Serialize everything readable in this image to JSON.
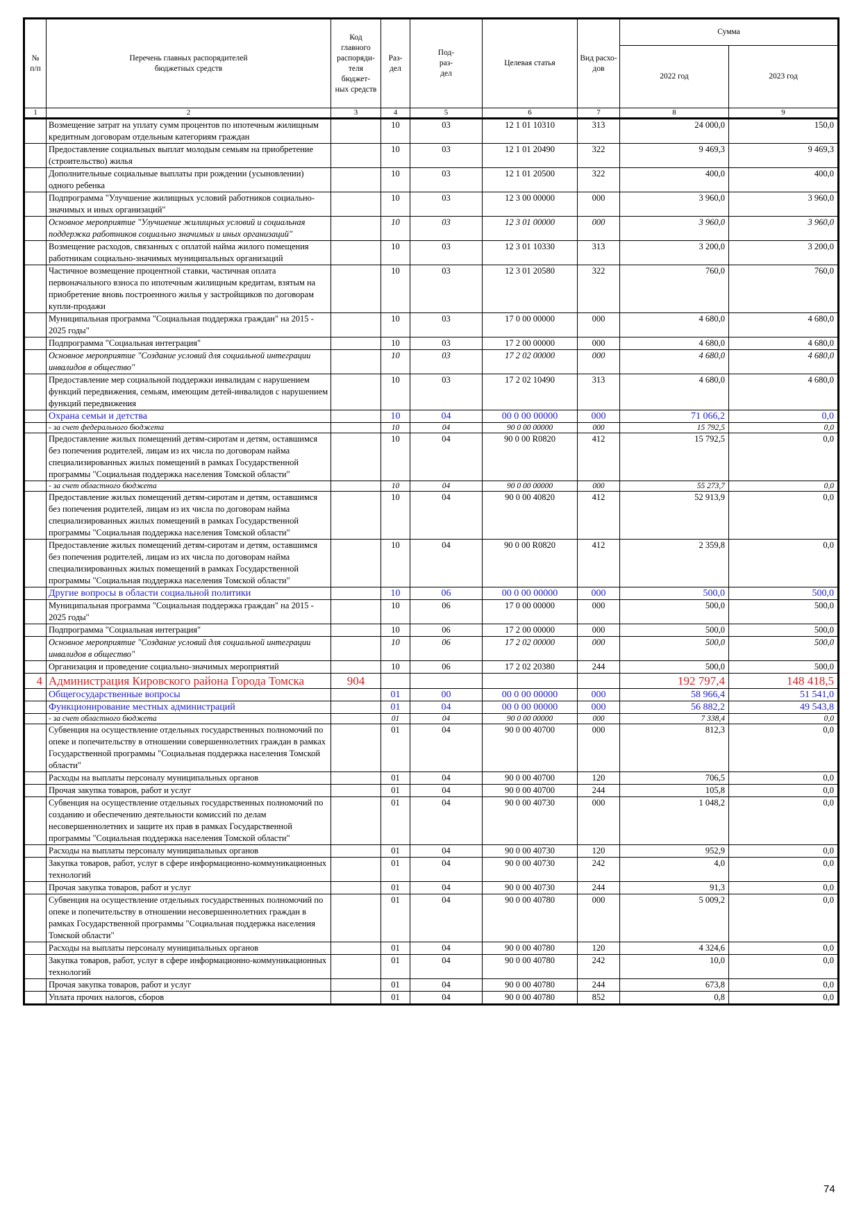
{
  "columns": {
    "num": "№\nп/п",
    "name": "Перечень главных распорядителей\nбюджетных средств",
    "code": "Код\nглавного\nраспоряди-\nтеля бюджет-\nных средств",
    "razdel": "Раз-\nдел",
    "podrazdel": "Под-\nраз-\nдел",
    "target": "Целевая статья",
    "vid": "Вид расхо-\nдов",
    "sum": "Сумма",
    "year1": "2022 год",
    "year2": "2023 год"
  },
  "column_numbers": [
    "1",
    "2",
    "3",
    "4",
    "5",
    "6",
    "7",
    "8",
    "9"
  ],
  "rows": [
    [
      null,
      "Возмещение затрат на уплату сумм процентов по ипотечным жилищным кредитным договорам отдельным категориям граждан",
      null,
      "10",
      "03",
      "12 1 01 10310",
      "313",
      "24 000,0",
      "150,0"
    ],
    [
      null,
      "Предоставление социальных выплат  молодым семьям на приобретение (строительство) жилья",
      null,
      "10",
      "03",
      "12 1 01 20490",
      "322",
      "9 469,3",
      "9 469,3"
    ],
    [
      null,
      "Дополнительные социальные выплаты при рождении (усыновлении) одного ребенка",
      null,
      "10",
      "03",
      "12 1 01 20500",
      "322",
      "400,0",
      "400,0"
    ],
    [
      null,
      "Подпрограмма \"Улучшение жилищных условий работников социально-значимых и иных организаций\"",
      null,
      "10",
      "03",
      "12 3 00 00000",
      "000",
      "3 960,0",
      "3 960,0"
    ],
    [
      null,
      "Основное мероприятие \"Улучшение жилищных условий и социальная поддержка работников социально значимых и иных организаций\"",
      null,
      "10",
      "03",
      "12 3 01 00000",
      "000",
      "3 960,0",
      "3 960,0"
    ],
    [
      null,
      "Возмещение расходов, связанных с оплатой найма жилого помещения работникам социально-значимых муниципальных организаций",
      null,
      "10",
      "03",
      "12 3 01 10330",
      "313",
      "3 200,0",
      "3 200,0"
    ],
    [
      null,
      "Частичное возмещение процентной ставки, частичная оплата первоначального взноса по ипотечным жилищным кредитам, взятым на приобретение вновь построенного жилья у застройщиков по договорам купли-продажи",
      null,
      "10",
      "03",
      "12 3 01 20580",
      "322",
      "760,0",
      "760,0"
    ],
    [
      null,
      "Муниципальная программа \"Социальная поддержка граждан\" на 2015 - 2025 годы\"",
      null,
      "10",
      "03",
      "17 0 00 00000",
      "000",
      "4 680,0",
      "4 680,0"
    ],
    [
      null,
      "Подпрограмма \"Социальная интеграция\"",
      null,
      "10",
      "03",
      "17 2 00 00000",
      "000",
      "4 680,0",
      "4 680,0"
    ],
    [
      null,
      "Основное мероприятие \"Создание условий для социальной интеграции инвалидов в общество\"",
      null,
      "10",
      "03",
      "17 2 02 00000",
      "000",
      "4 680,0",
      "4 680,0"
    ],
    [
      null,
      "Предоставление мер социальной поддержки инвалидам с нарушением функций передвижения, семьям, имеющим детей-инвалидов с нарушением функций передвижения",
      null,
      "10",
      "03",
      "17 2 02 10490",
      "313",
      "4 680,0",
      "4 680,0"
    ],
    [
      null,
      "Охрана семьи и детства",
      null,
      "10",
      "04",
      "00 0 00 00000",
      "000",
      "71 066,2",
      "0,0"
    ],
    [
      null,
      "- за счет федерального бюджета",
      null,
      "10",
      "04",
      "90 0 00 00000",
      "000",
      "15 792,5",
      "0,0"
    ],
    [
      null,
      "Предоставление жилых помещений детям-сиротам и детям, оставшимся без попечения родителей, лицам из их числа по договорам найма специализированных жилых помещений  в рамках Государственной программы \"Социальная поддержка населения Томской области\"",
      null,
      "10",
      "04",
      "90 0 00 R0820",
      "412",
      "15 792,5",
      "0,0"
    ],
    [
      null,
      "- за счет областного бюджета",
      null,
      "10",
      "04",
      "90 0 00 00000",
      "000",
      "55 273,7",
      "0,0"
    ],
    [
      null,
      "Предоставление жилых помещений детям-сиротам и детям, оставшимся без попечения родителей, лицам из их числа по договорам найма специализированных жилых помещений  в рамках Государственной программы \"Социальная поддержка населения Томской области\"",
      null,
      "10",
      "04",
      "90 0 00 40820",
      "412",
      "52 913,9",
      "0,0"
    ],
    [
      null,
      "Предоставление жилых помещений детям-сиротам и детям, оставшимся без попечения родителей, лицам из их числа по договорам найма специализированных жилых помещений  в рамках Государственной программы \"Социальная поддержка населения Томской области\"",
      null,
      "10",
      "04",
      "90 0 00 R0820",
      "412",
      "2 359,8",
      "0,0"
    ],
    [
      null,
      "Другие вопросы в области социальной политики",
      null,
      "10",
      "06",
      "00 0 00 00000",
      "000",
      "500,0",
      "500,0"
    ],
    [
      null,
      "Муниципальная программа \"Социальная поддержка граждан\" на 2015 - 2025 годы\"",
      null,
      "10",
      "06",
      "17 0 00 00000",
      "000",
      "500,0",
      "500,0"
    ],
    [
      null,
      "Подпрограмма \"Социальная интеграция\"",
      null,
      "10",
      "06",
      "17 2 00 00000",
      "000",
      "500,0",
      "500,0"
    ],
    [
      null,
      "Основное мероприятие \"Создание условий для социальной интеграции инвалидов в общество\"",
      null,
      "10",
      "06",
      "17 2 02 00000",
      "000",
      "500,0",
      "500,0"
    ],
    [
      null,
      "Организация и проведение социально-значимых мероприятий",
      null,
      "10",
      "06",
      "17 2 02 20380",
      "244",
      "500,0",
      "500,0"
    ],
    [
      "4",
      "Администрация Кировского района Города Томска",
      "904",
      null,
      null,
      null,
      null,
      "192 797,4",
      "148 418,5"
    ],
    [
      null,
      "Общегосударственные вопросы",
      null,
      "01",
      "00",
      "00 0 00 00000",
      "000",
      "58 966,4",
      "51 541,0"
    ],
    [
      null,
      "Функционирование местных администраций",
      null,
      "01",
      "04",
      "00 0 00 00000",
      "000",
      "56 882,2",
      "49 543,8"
    ],
    [
      null,
      "- за счет областного бюджета",
      null,
      "01",
      "04",
      "90 0 00 00000",
      "000",
      "7 338,4",
      "0,0"
    ],
    [
      null,
      "Субвенция на осуществление отдельных государственных полномочий по опеке и попечительству в отношении совершеннолетних граждан в рамках Государственной программы \"Социальная поддержка населения Томской области\"",
      null,
      "01",
      "04",
      "90 0 00 40700",
      "000",
      "812,3",
      "0,0"
    ],
    [
      null,
      "Расходы на выплаты персоналу муниципальных органов",
      null,
      "01",
      "04",
      "90 0 00 40700",
      "120",
      "706,5",
      "0,0"
    ],
    [
      null,
      "Прочая закупка товаров, работ и услуг",
      null,
      "01",
      "04",
      "90 0 00 40700",
      "244",
      "105,8",
      "0,0"
    ],
    [
      null,
      "Субвенция на осуществление отдельных государственных полномочий по созданию и обеспечению деятельности комиссий по делам несовершеннолетних и защите их прав в рамках Государственной программы  \"Социальная поддержка населения Томской области\"",
      null,
      "01",
      "04",
      "90 0 00 40730",
      "000",
      "1 048,2",
      "0,0"
    ],
    [
      null,
      "Расходы на выплаты персоналу муниципальных органов",
      null,
      "01",
      "04",
      "90 0 00 40730",
      "120",
      "952,9",
      "0,0"
    ],
    [
      null,
      "Закупка товаров, работ, услуг в сфере информационно-коммуникационных технологий",
      null,
      "01",
      "04",
      "90 0 00 40730",
      "242",
      "4,0",
      "0,0"
    ],
    [
      null,
      "Прочая закупка товаров, работ и услуг",
      null,
      "01",
      "04",
      "90 0 00 40730",
      "244",
      "91,3",
      "0,0"
    ],
    [
      null,
      "Субвенция на осуществление отдельных государственных полномочий по опеке и попечительству в  отношении несовершеннолетних граждан в рамках Государственной программы \"Социальная поддержка населения Томской области\"",
      null,
      "01",
      "04",
      "90 0 00 40780",
      "000",
      "5 009,2",
      "0,0"
    ],
    [
      null,
      "Расходы на выплаты персоналу муниципальных органов",
      null,
      "01",
      "04",
      "90 0 00 40780",
      "120",
      "4 324,6",
      "0,0"
    ],
    [
      null,
      "Закупка товаров, работ, услуг в сфере информационно-коммуникационных технологий",
      null,
      "01",
      "04",
      "90 0 00 40780",
      "242",
      "10,0",
      "0,0"
    ],
    [
      null,
      "Прочая закупка товаров, работ и услуг",
      null,
      "01",
      "04",
      "90 0 00 40780",
      "244",
      "673,8",
      "0,0"
    ],
    [
      null,
      "Уплата прочих налогов, сборов",
      null,
      "01",
      "04",
      "90 0 00 40780",
      "852",
      "0,8",
      "0,0"
    ]
  ],
  "page_number": "74"
}
